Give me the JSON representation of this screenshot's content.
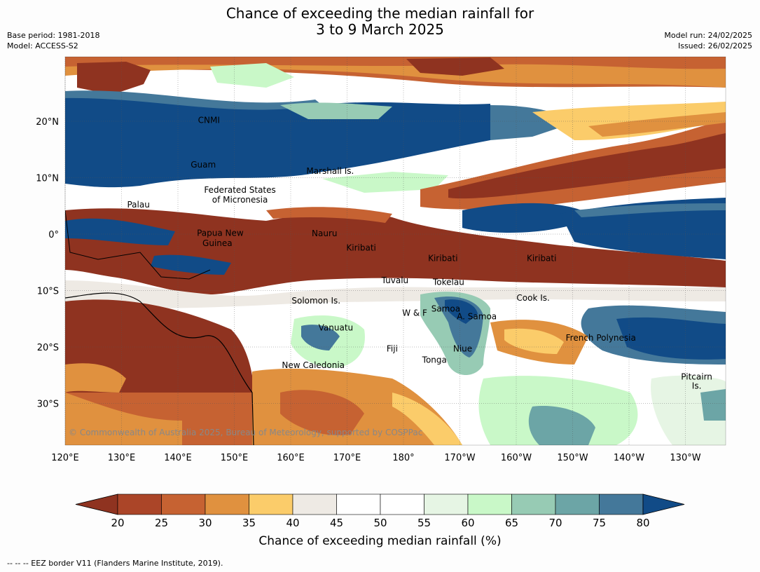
{
  "title": {
    "line1": "Chance of exceeding the median rainfall for",
    "line2": "3 to 9 March 2025"
  },
  "meta_left": {
    "base_period": "Base period: 1981-2018",
    "model": "Model: ACCESS-S2"
  },
  "meta_right": {
    "model_run": "Model run: 24/02/2025",
    "issued": "Issued: 26/02/2025"
  },
  "copyright": "© Commonwealth of Australia 2025, Bureau of Meteorology, supported by COSPPac",
  "axes": {
    "x_ticks": [
      {
        "lon": 120,
        "label": "120°E"
      },
      {
        "lon": 130,
        "label": "130°E"
      },
      {
        "lon": 140,
        "label": "140°E"
      },
      {
        "lon": 150,
        "label": "150°E"
      },
      {
        "lon": 160,
        "label": "160°E"
      },
      {
        "lon": 170,
        "label": "170°E"
      },
      {
        "lon": 180,
        "label": "180°"
      },
      {
        "lon": 190,
        "label": "170°W"
      },
      {
        "lon": 200,
        "label": "160°W"
      },
      {
        "lon": 210,
        "label": "150°W"
      },
      {
        "lon": 220,
        "label": "140°W"
      },
      {
        "lon": 230,
        "label": "130°W"
      }
    ],
    "y_ticks": [
      {
        "lat": 20,
        "label": "20°N"
      },
      {
        "lat": 10,
        "label": "10°N"
      },
      {
        "lat": 0,
        "label": "0°"
      },
      {
        "lat": -10,
        "label": "10°S"
      },
      {
        "lat": -20,
        "label": "20°S"
      },
      {
        "lat": -30,
        "label": "30°S"
      }
    ]
  },
  "regions": [
    {
      "name": "CNMI",
      "lon": 145.5,
      "lat": 20.2
    },
    {
      "name": "Guam",
      "lon": 144.5,
      "lat": 12.3
    },
    {
      "name": "Marshall Is.",
      "lon": 167,
      "lat": 11.2
    },
    {
      "name": "Federated States",
      "lon": 151,
      "lat": 7.8
    },
    {
      "name": "of Micronesia",
      "lon": 151,
      "lat": 6.1
    },
    {
      "name": "Palau",
      "lon": 133,
      "lat": 5.2
    },
    {
      "name": "Papua New",
      "lon": 147.5,
      "lat": 0.2
    },
    {
      "name": "Guinea",
      "lon": 147,
      "lat": -1.6
    },
    {
      "name": "Nauru",
      "lon": 166,
      "lat": 0.1
    },
    {
      "name": "Kiribati",
      "lon": 172.5,
      "lat": -2.4
    },
    {
      "name": "Kiribati",
      "lon": 187,
      "lat": -4.3
    },
    {
      "name": "Kiribati",
      "lon": 204.5,
      "lat": -4.3
    },
    {
      "name": "Tuvalu",
      "lon": 178.5,
      "lat": -8.2
    },
    {
      "name": "Tokelau",
      "lon": 188,
      "lat": -8.5
    },
    {
      "name": "Cook Is.",
      "lon": 203,
      "lat": -11.3
    },
    {
      "name": "Solomon Is.",
      "lon": 164.5,
      "lat": -11.8
    },
    {
      "name": "Samoa",
      "lon": 187.5,
      "lat": -13.2
    },
    {
      "name": "W & F",
      "lon": 182,
      "lat": -14
    },
    {
      "name": "A. Samoa",
      "lon": 193,
      "lat": -14.6
    },
    {
      "name": "Vanuatu",
      "lon": 168,
      "lat": -16.6
    },
    {
      "name": "Fiji",
      "lon": 178,
      "lat": -20.3
    },
    {
      "name": "Niue",
      "lon": 190.5,
      "lat": -20.3
    },
    {
      "name": "French Polynesia",
      "lon": 215,
      "lat": -18.4
    },
    {
      "name": "Tonga",
      "lon": 185.5,
      "lat": -22.3
    },
    {
      "name": "New Caledonia",
      "lon": 164,
      "lat": -23.2
    },
    {
      "name": "Pitcairn",
      "lon": 232,
      "lat": -25.3
    },
    {
      "name": "Is.",
      "lon": 232,
      "lat": -26.9
    }
  ],
  "colorbar": {
    "label": "Chance of exceeding median rainfall (%)",
    "ticks": [
      "20",
      "25",
      "30",
      "35",
      "40",
      "45",
      "50",
      "55",
      "60",
      "65",
      "70",
      "75",
      "80"
    ],
    "colors": [
      "#8f3320",
      "#ab4528",
      "#c66232",
      "#e0913f",
      "#fbcc6a",
      "#eeeae4",
      "#ffffff",
      "#ffffff",
      "#e6f5e4",
      "#c9f8c8",
      "#97cbb4",
      "#6ca5a6",
      "#44789a",
      "#114b87"
    ]
  },
  "footnote": "--  --  -- EEZ border V11 (Flanders Marine Institute, 2019)."
}
